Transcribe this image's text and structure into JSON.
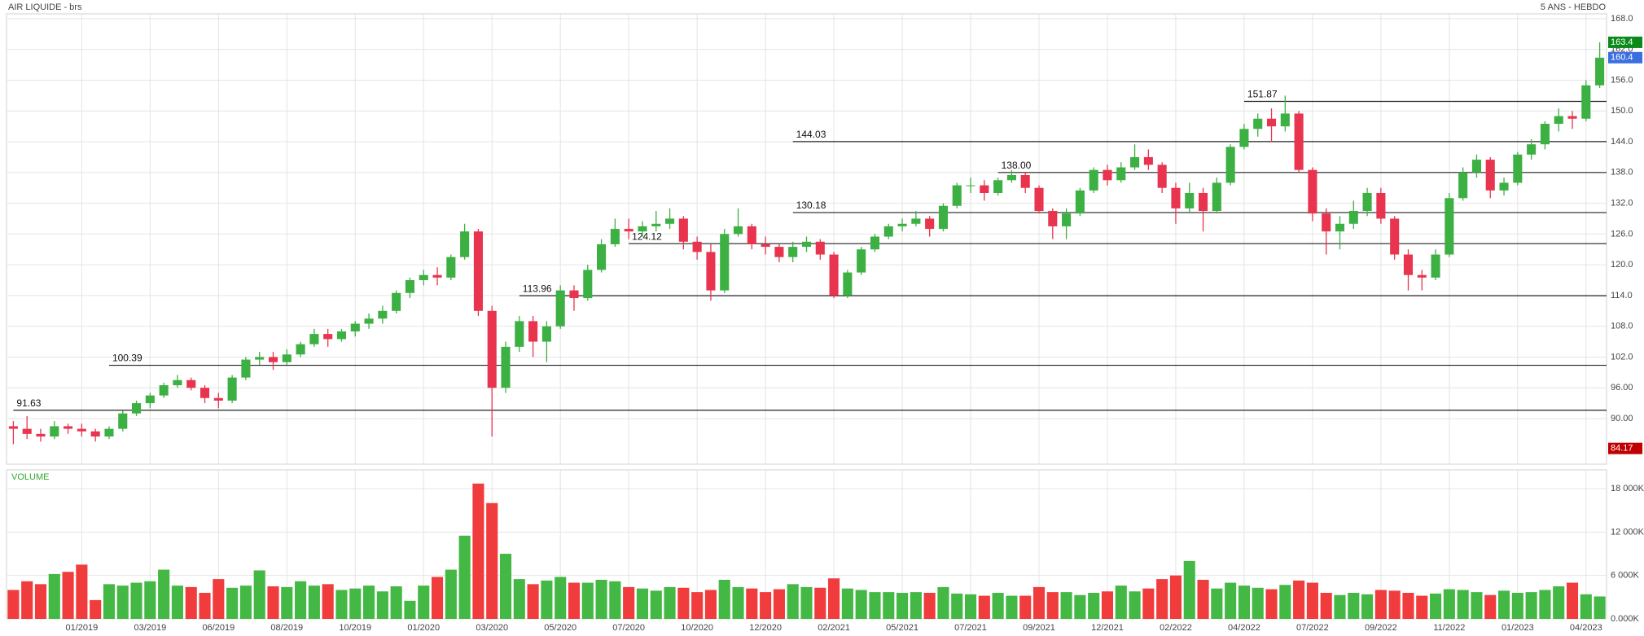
{
  "chart_data": [
    {
      "type": "candlestick",
      "title": "AIR LIQUIDE - brs",
      "subtitle": "5 ANS - HEBDO",
      "categories": [
        null,
        null,
        null,
        null,
        null,
        "01/2019",
        null,
        null,
        null,
        null,
        "03/2019",
        null,
        null,
        null,
        null,
        "06/2019",
        null,
        null,
        null,
        null,
        "08/2019",
        null,
        null,
        null,
        null,
        "10/2019",
        null,
        null,
        null,
        null,
        "01/2020",
        null,
        null,
        null,
        null,
        "03/2020",
        null,
        null,
        null,
        null,
        "05/2020",
        null,
        null,
        null,
        null,
        "07/2020",
        null,
        null,
        null,
        null,
        "10/2020",
        null,
        null,
        null,
        null,
        "12/2020",
        null,
        null,
        null,
        null,
        "02/2021",
        null,
        null,
        null,
        null,
        "05/2021",
        null,
        null,
        null,
        null,
        "07/2021",
        null,
        null,
        null,
        null,
        "09/2021",
        null,
        null,
        null,
        null,
        "12/2021",
        null,
        null,
        null,
        null,
        "02/2022",
        null,
        null,
        null,
        null,
        "04/2022",
        null,
        null,
        null,
        null,
        "07/2022",
        null,
        null,
        null,
        null,
        "09/2022",
        null,
        null,
        null,
        null,
        "11/2022",
        null,
        null,
        null,
        null,
        "01/2023",
        null,
        null,
        null,
        null,
        "04/2023",
        null
      ],
      "values": [
        [
          88.5,
          89.5,
          85,
          88
        ],
        [
          88,
          90.5,
          86,
          87
        ],
        [
          87,
          88,
          85.5,
          86.5
        ],
        [
          86.5,
          89.5,
          86,
          88.5
        ],
        [
          88.5,
          89,
          87,
          88
        ],
        [
          88,
          89,
          86.5,
          87.5
        ],
        [
          87.5,
          88,
          85.5,
          86.5
        ],
        [
          86.5,
          88.5,
          86,
          88
        ],
        [
          88,
          91.5,
          87.5,
          91
        ],
        [
          91,
          93.5,
          90.5,
          93
        ],
        [
          93,
          95,
          92,
          94.5
        ],
        [
          94.5,
          97,
          94,
          96.5
        ],
        [
          96.5,
          98.5,
          96,
          97.5
        ],
        [
          97.5,
          98,
          95.5,
          96
        ],
        [
          96,
          96.5,
          93,
          94
        ],
        [
          94,
          95,
          92,
          93.5
        ],
        [
          93.5,
          98.5,
          93,
          98
        ],
        [
          98,
          102,
          97.5,
          101.5
        ],
        [
          101.5,
          103,
          100.5,
          102
        ],
        [
          102,
          103,
          99.5,
          101
        ],
        [
          101,
          103.5,
          100.5,
          102.5
        ],
        [
          102.5,
          105,
          102,
          104.5
        ],
        [
          104.5,
          107.5,
          104,
          106.5
        ],
        [
          106.5,
          107.5,
          104,
          105.5
        ],
        [
          105.5,
          107.5,
          105,
          107
        ],
        [
          107,
          109,
          106,
          108.5
        ],
        [
          108.5,
          110.5,
          107.5,
          109.5
        ],
        [
          109.5,
          112,
          108.5,
          111
        ],
        [
          111,
          115,
          110.5,
          114.5
        ],
        [
          114.5,
          117.5,
          113.5,
          117
        ],
        [
          117,
          119,
          116,
          118
        ],
        [
          118,
          119.5,
          116,
          117.5
        ],
        [
          117.5,
          122,
          117,
          121.5
        ],
        [
          121.5,
          128,
          121,
          126.5
        ],
        [
          126.5,
          127,
          110,
          111
        ],
        [
          111,
          112,
          86.5,
          96
        ],
        [
          96,
          105,
          95,
          104
        ],
        [
          104,
          110,
          103,
          109
        ],
        [
          109,
          110,
          102,
          105
        ],
        [
          105,
          109,
          101,
          108
        ],
        [
          108,
          116,
          107.5,
          115
        ],
        [
          115,
          116,
          111,
          113.5
        ],
        [
          113.5,
          120,
          113,
          119
        ],
        [
          119,
          125,
          118.5,
          124
        ],
        [
          124,
          129,
          123.5,
          127
        ],
        [
          127,
          129,
          125,
          126.5
        ],
        [
          126.5,
          128.5,
          125.5,
          127.5
        ],
        [
          127.5,
          130.5,
          126.5,
          128
        ],
        [
          128,
          131,
          127,
          129
        ],
        [
          129,
          129.5,
          123,
          124.5
        ],
        [
          124.5,
          125.5,
          121,
          122.5
        ],
        [
          122.5,
          124,
          113,
          115
        ],
        [
          115,
          127,
          114.5,
          126
        ],
        [
          126,
          131,
          125.5,
          127.5
        ],
        [
          127.5,
          128,
          123,
          124
        ],
        [
          124,
          125.5,
          122,
          123.5
        ],
        [
          123.5,
          124,
          120.5,
          121.5
        ],
        [
          121.5,
          124.5,
          120.5,
          123.5
        ],
        [
          123.5,
          125.5,
          122.5,
          124.5
        ],
        [
          124.5,
          125,
          121,
          122
        ],
        [
          122,
          122.5,
          113.5,
          114
        ],
        [
          114,
          119,
          113.5,
          118.5
        ],
        [
          118.5,
          123.5,
          118,
          123
        ],
        [
          123,
          126,
          122.5,
          125.5
        ],
        [
          125.5,
          128,
          125,
          127.5
        ],
        [
          127.5,
          129,
          126.5,
          128
        ],
        [
          128,
          130.5,
          127.5,
          129
        ],
        [
          129,
          129.5,
          125.5,
          127
        ],
        [
          127,
          132,
          126.5,
          131.5
        ],
        [
          131.5,
          136,
          131,
          135.5
        ],
        [
          135.5,
          137,
          134,
          135.5
        ],
        [
          135.5,
          136.5,
          132.5,
          134
        ],
        [
          134,
          137,
          133.5,
          136.5
        ],
        [
          136.5,
          138.5,
          136,
          137.5
        ],
        [
          137.5,
          138,
          134,
          135
        ],
        [
          135,
          135.5,
          130,
          130.5
        ],
        [
          130.5,
          131,
          125,
          127.5
        ],
        [
          127.5,
          131,
          125,
          130
        ],
        [
          130,
          135,
          129.5,
          134.5
        ],
        [
          134.5,
          139,
          134,
          138.5
        ],
        [
          138.5,
          139.5,
          135.5,
          136.5
        ],
        [
          136.5,
          140,
          136,
          139
        ],
        [
          139,
          143.5,
          138.5,
          141
        ],
        [
          141,
          142.5,
          138.5,
          139.5
        ],
        [
          139.5,
          140,
          134,
          135
        ],
        [
          135,
          136,
          128,
          131
        ],
        [
          131,
          136,
          130,
          134
        ],
        [
          134,
          135,
          126.5,
          130.5
        ],
        [
          130.5,
          137,
          130,
          136
        ],
        [
          136,
          143.5,
          135.5,
          143
        ],
        [
          143,
          147.5,
          142.5,
          146.5
        ],
        [
          146.5,
          149.5,
          145,
          148.5
        ],
        [
          148.5,
          150.5,
          144,
          147
        ],
        [
          147,
          153,
          146,
          149.5
        ],
        [
          149.5,
          150,
          138,
          138.5
        ],
        [
          138.5,
          139,
          128.5,
          130
        ],
        [
          130,
          131,
          122,
          126.5
        ],
        [
          126.5,
          129.5,
          123,
          128
        ],
        [
          128,
          132.5,
          127,
          130.5
        ],
        [
          130.5,
          135,
          129.5,
          134
        ],
        [
          134,
          135,
          128,
          129
        ],
        [
          129,
          129.5,
          121,
          122
        ],
        [
          122,
          123,
          115,
          118
        ],
        [
          118,
          119,
          115,
          117.5
        ],
        [
          117.5,
          123,
          117,
          122
        ],
        [
          122,
          134,
          121.5,
          133
        ],
        [
          133,
          139,
          132.5,
          138
        ],
        [
          138,
          141.5,
          137,
          140.5
        ],
        [
          140.5,
          141,
          133,
          134.5
        ],
        [
          134.5,
          137,
          133.5,
          136
        ],
        [
          136,
          142,
          135.5,
          141.5
        ],
        [
          141.5,
          144.5,
          140.5,
          143.5
        ],
        [
          143.5,
          148,
          142.5,
          147.5
        ],
        [
          147.5,
          150.5,
          146,
          149
        ],
        [
          149,
          150,
          146.5,
          148.5
        ],
        [
          148.5,
          156,
          148,
          155
        ],
        [
          155,
          163.4,
          154.5,
          160.4
        ]
      ],
      "ylim": [
        81.1,
        168.95
      ],
      "yticks": [
        {
          "value": 90,
          "label": "90.00"
        },
        {
          "value": 96,
          "label": "96.00"
        },
        {
          "value": 102,
          "label": "102.0"
        },
        {
          "value": 108,
          "label": "108.0"
        },
        {
          "value": 114,
          "label": "114.0"
        },
        {
          "value": 120,
          "label": "120.0"
        },
        {
          "value": 126,
          "label": "126.0"
        },
        {
          "value": 132,
          "label": "132.0"
        },
        {
          "value": 138,
          "label": "138.0"
        },
        {
          "value": 144,
          "label": "144.0"
        },
        {
          "value": 150,
          "label": "150.0"
        },
        {
          "value": 156,
          "label": "156.0"
        },
        {
          "value": 162,
          "label": "162.0"
        },
        {
          "value": 168,
          "label": "168.0"
        }
      ],
      "up_color": "#3cb043",
      "down_color": "#e8344e",
      "grid": true,
      "levels": [
        {
          "value": 91.63,
          "start": 0
        },
        {
          "value": 100.39,
          "start": 7
        },
        {
          "value": 113.96,
          "start": 37
        },
        {
          "value": 124.12,
          "start": 45
        },
        {
          "value": 130.18,
          "start": 57
        },
        {
          "value": 138,
          "label": "138.00",
          "start": 72
        },
        {
          "value": 144.03,
          "start": 57
        },
        {
          "value": 151.87,
          "start": 90
        }
      ],
      "badges": [
        {
          "value": 163.4,
          "color": "#0a8a1a"
        },
        {
          "value": 160.4,
          "color": "#3b6fe0"
        },
        {
          "value": 84.17,
          "color": "#c00000"
        }
      ]
    },
    {
      "type": "bar",
      "title": "VOLUME",
      "values": [
        4000,
        5200,
        4800,
        6200,
        6500,
        7500,
        2600,
        4800,
        4600,
        5000,
        5200,
        6800,
        4600,
        4400,
        3600,
        5500,
        4300,
        4600,
        6700,
        4500,
        4400,
        5200,
        4600,
        4800,
        4000,
        4200,
        4600,
        3800,
        4500,
        2500,
        4600,
        5800,
        6800,
        11500,
        18700,
        16000,
        9000,
        5500,
        4800,
        5300,
        5800,
        5000,
        5000,
        5400,
        5200,
        4400,
        4200,
        3900,
        4400,
        4300,
        3700,
        4000,
        5400,
        4400,
        4200,
        3700,
        4100,
        4800,
        4400,
        4300,
        5600,
        4200,
        4000,
        3700,
        3700,
        3600,
        3700,
        3600,
        4400,
        3500,
        3400,
        3200,
        3600,
        3200,
        3200,
        4400,
        3700,
        3700,
        3300,
        3600,
        3800,
        4600,
        3800,
        4200,
        5500,
        6000,
        8000,
        5400,
        4200,
        5000,
        4600,
        4300,
        4100,
        4700,
        5300,
        5000,
        3600,
        3300,
        3600,
        3400,
        4000,
        3900,
        3600,
        3200,
        3500,
        4100,
        4000,
        3700,
        3300,
        3900,
        3600,
        3700,
        4000,
        4500,
        5000,
        3400,
        3100
      ],
      "ylim": [
        0,
        20590
      ],
      "yticks": [
        {
          "value": 0,
          "label": "0.000K"
        },
        {
          "value": 6000,
          "label": "6 000K"
        },
        {
          "value": 12000,
          "label": "12 000K"
        },
        {
          "value": 18000,
          "label": "18 000K"
        }
      ],
      "up_color": "#44b844",
      "down_color": "#f03c3c",
      "grid": true
    }
  ]
}
